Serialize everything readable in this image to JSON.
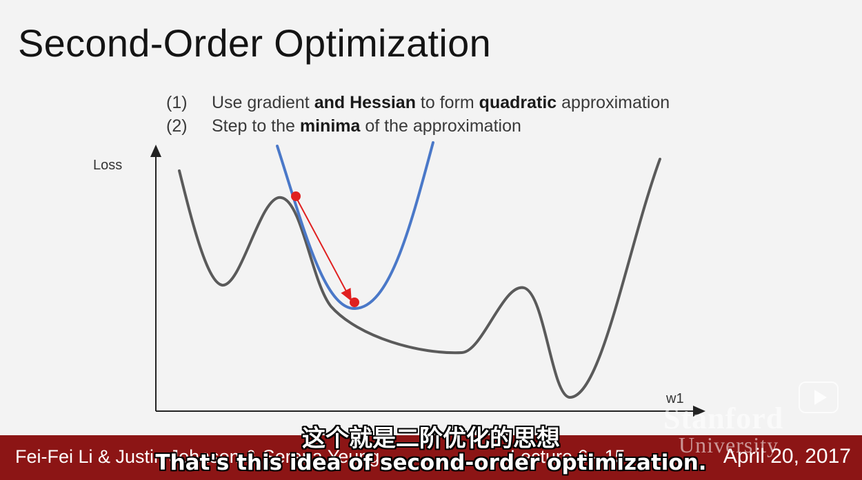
{
  "slide": {
    "title": "Second-Order Optimization",
    "steps": [
      {
        "num": "(1)",
        "parts": [
          "Use gradient ",
          "and Hessian",
          " to form ",
          "quadratic",
          " approximation"
        ]
      },
      {
        "num": "(2)",
        "parts": [
          "Step to the ",
          "minima",
          " of the approximation"
        ]
      }
    ]
  },
  "plot": {
    "ylabel": "Loss",
    "xlabel": "w1",
    "colors": {
      "loss_curve": "#5a5a5a",
      "quadratic": "#4a78c8",
      "step_arrow": "#e02020"
    }
  },
  "footer": {
    "authors": "Fei-Fei Li & Justin Johnson & Serena Yeung",
    "lecture": "Lecture 6 - 15",
    "date": "April 20, 2017",
    "watermark_line1": "Stanford",
    "watermark_line2": "University"
  },
  "subtitles": {
    "chinese": "这个就是二阶优化的思想",
    "english": "That's this idea of second-order optimization."
  },
  "icons": {
    "player": "play-icon"
  }
}
